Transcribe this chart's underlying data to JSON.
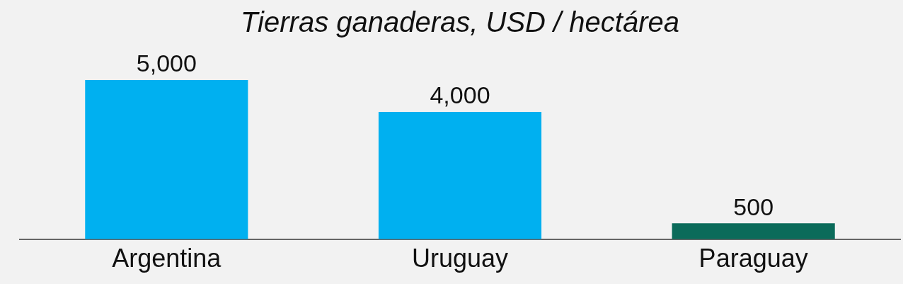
{
  "chart_data": {
    "type": "bar",
    "title": "Tierras ganaderas, USD / hectárea",
    "categories": [
      "Argentina",
      "Uruguay",
      "Paraguay"
    ],
    "values": [
      5000,
      4000,
      500
    ],
    "colors": [
      "#00b0f0",
      "#00b0f0",
      "#0b6b5a"
    ],
    "value_labels": [
      "5,000",
      "4,000",
      "500"
    ],
    "tick_labels": "x",
    "grid": false,
    "legend": false
  }
}
